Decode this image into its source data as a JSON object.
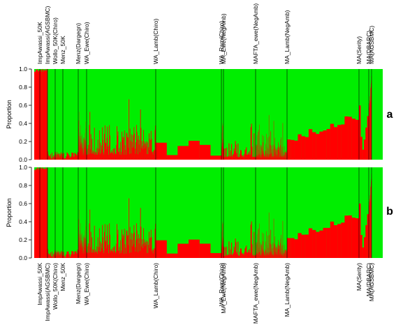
{
  "chart_data": {
    "type": "stacked-bar",
    "colors": {
      "cluster1": "#ff0000",
      "cluster2": "#00ee00",
      "divider": "#000000"
    },
    "ylabel": "Proportion",
    "ylim": [
      0,
      1
    ],
    "yticks": [
      "0.0",
      "0.2",
      "0.4",
      "0.6",
      "0.8",
      "1.0"
    ],
    "groups": [
      {
        "label": "ImpAwassi_50K",
        "n": 8
      },
      {
        "label": "ImpAwassi(AGSBMC)",
        "n": 12
      },
      {
        "label": "Wollo_50K(Chiro)",
        "n": 16
      },
      {
        "label": "Menz_50K",
        "n": 32
      },
      {
        "label": "Menz(Dargegn)",
        "n": 16
      },
      {
        "label": "WA_Ewe(Chiro)",
        "n": 140
      },
      {
        "label": "WA_Lamb(Chiro)",
        "n": 138
      },
      {
        "label": "WA_Ram(Chiro)",
        "n": 6
      },
      {
        "label": "MA_Ewe(NegAmb)",
        "n": 80
      },
      {
        "label": "MAFTA_ewe(NegAmb)",
        "n": 50
      },
      {
        "label": "MA_Lamb(NegAmb)",
        "n": 150
      },
      {
        "label": "MA(Serity)",
        "n": 20
      },
      {
        "label": "MA(DBARC)",
        "n": 6
      },
      {
        "label": "MA(AGSBMC)",
        "n": 18
      }
    ],
    "group_mean_proportion_cluster1": [
      0.98,
      0.99,
      0.03,
      0.02,
      0.02,
      0.17,
      0.22,
      0.15,
      0.13,
      0.11,
      0.1,
      0.22,
      0.4,
      0.62
    ],
    "panels": [
      {
        "label": "a"
      },
      {
        "label": "b"
      }
    ]
  }
}
